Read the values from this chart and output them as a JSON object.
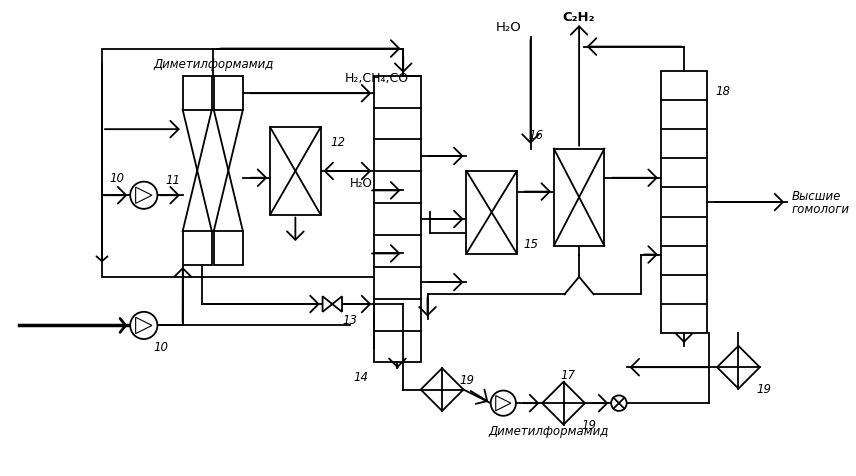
{
  "background": "white",
  "lw": 1.3,
  "labels": {
    "dimf_top": "Диметилформамид",
    "h2ch4co": "H₂,CH₄,CO",
    "h2o_top": "H₂O",
    "c2h2": "C₂H₂",
    "vysshie1": "Высшие",
    "vysshie2": "гомологи",
    "h2o_mid": "H₂O",
    "dimf_bot": "Диметилформамид",
    "n10a": "10",
    "n10b": "10",
    "n11": "11",
    "n12": "12",
    "n13": "13",
    "n14": "14",
    "n15": "15",
    "n16": "16",
    "n17": "17",
    "n18": "18",
    "n19a": "19",
    "n19b": "19",
    "n19c": "19"
  }
}
